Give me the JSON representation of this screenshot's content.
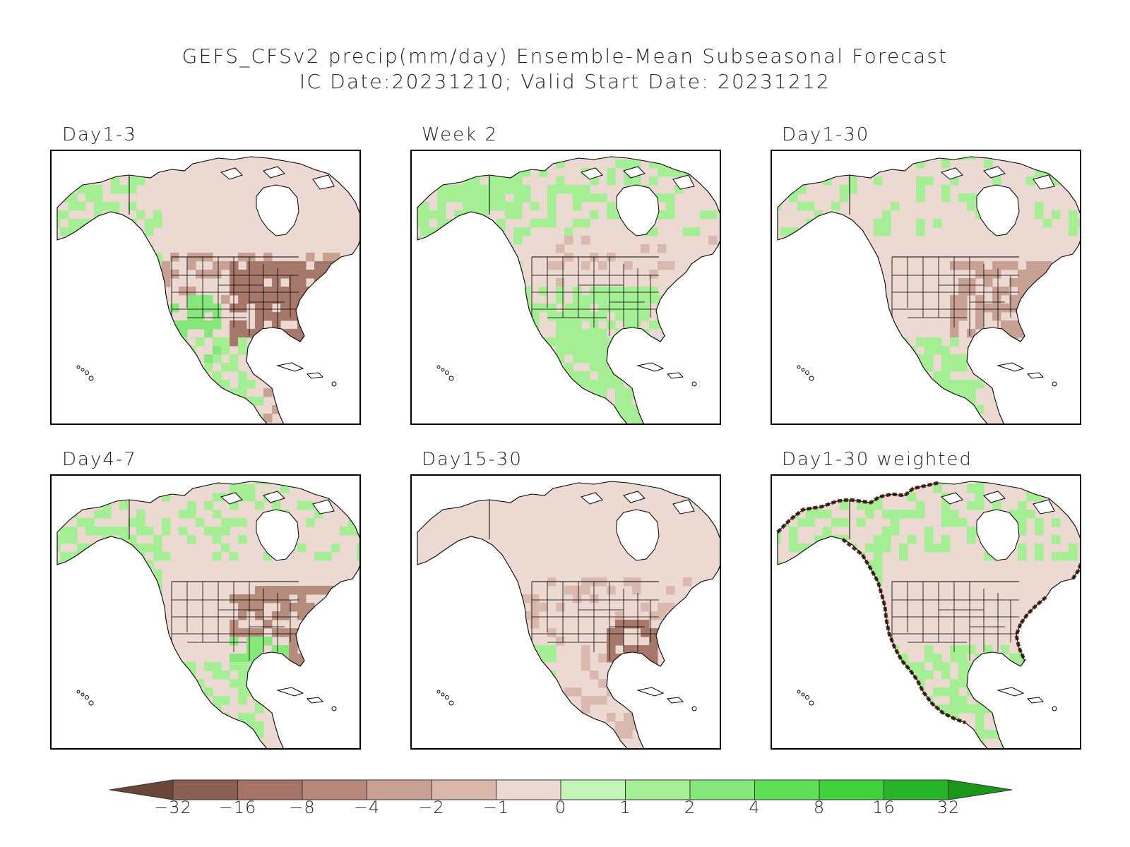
{
  "title": {
    "line1": "GEFS_CFSv2 precip(mm/day) Ensemble-Mean Subseasonal Forecast",
    "line2": "IC Date:20231210; Valid Start Date: 20231212"
  },
  "panels": [
    {
      "label": "Day1-3",
      "dry_tint": "#c9a094",
      "dry_core": "#a67869"
    },
    {
      "label": "Week 2",
      "dry_tint": "#d9b9ad",
      "dry_core": "#c9a094"
    },
    {
      "label": "Day1-30",
      "dry_tint": "#d9b9ad",
      "dry_core": "#c9a094"
    },
    {
      "label": "Day4-7",
      "dry_tint": "#c9a094",
      "dry_core": "#b58b7c"
    },
    {
      "label": "Day15-30",
      "dry_tint": "#d9b9ad",
      "dry_core": "#a67869"
    },
    {
      "label": "Day1-30 weighted",
      "dry_tint": "#d9b9ad",
      "dry_core": "#c9a094"
    }
  ],
  "colorbar": {
    "labels": [
      "−32",
      "−16",
      "−8",
      "−4",
      "−2",
      "−1",
      "0",
      "1",
      "2",
      "4",
      "8",
      "16",
      "32"
    ],
    "colors": [
      "#6b4638",
      "#8a5e50",
      "#a57466",
      "#b8897b",
      "#c9a094",
      "#d9b6a9",
      "#ecdad2",
      "#c4f5b8",
      "#a4ee94",
      "#86e77a",
      "#5fe056",
      "#3fd23c",
      "#28b428",
      "#1a961a"
    ]
  },
  "map_colors": {
    "land_neutral": "#ecdad2",
    "wet_light": "#a4ee94",
    "wet_mid": "#86e77a",
    "coast_dark": "#5a3222",
    "outline": "#000000"
  }
}
